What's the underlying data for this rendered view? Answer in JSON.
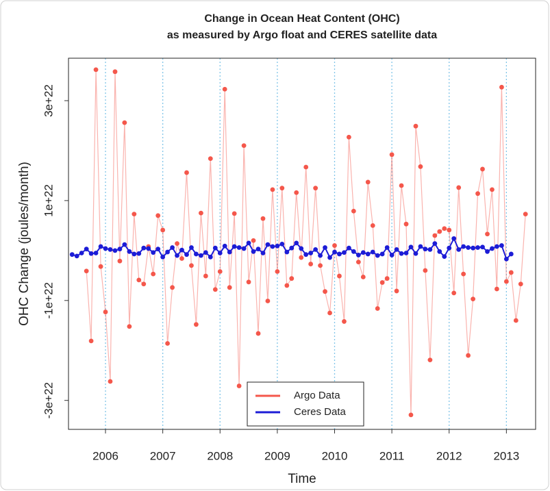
{
  "chart_data": {
    "type": "line",
    "title": "Change in Ocean Heat Content (OHC)",
    "subtitle": "as measured by Argo float and CERES satellite data",
    "x_label": "Time",
    "y_label": "OHC Change (joules/month)",
    "xlim": [
      2005.354,
      2013.51
    ],
    "ylim": [
      -3.58e+22,
      3.85e+22
    ],
    "xticks": [
      2006,
      2007,
      2008,
      2009,
      2010,
      2011,
      2012,
      2013
    ],
    "yticks": [
      {
        "value": -3e+22,
        "label": "-3e+22"
      },
      {
        "value": -1e+22,
        "label": "-1e+22"
      },
      {
        "value": 1e+22,
        "label": "1e+22"
      },
      {
        "value": 3e+22,
        "label": "3e+22"
      }
    ],
    "grid": true,
    "legend": "bottom",
    "x": [
      2005.417,
      2005.5,
      2005.583,
      2005.667,
      2005.75,
      2005.833,
      2005.917,
      2006,
      2006.083,
      2006.167,
      2006.25,
      2006.333,
      2006.417,
      2006.5,
      2006.583,
      2006.667,
      2006.75,
      2006.833,
      2006.917,
      2007,
      2007.083,
      2007.167,
      2007.25,
      2007.333,
      2007.417,
      2007.5,
      2007.583,
      2007.667,
      2007.75,
      2007.833,
      2007.917,
      2008,
      2008.083,
      2008.167,
      2008.25,
      2008.333,
      2008.417,
      2008.5,
      2008.583,
      2008.667,
      2008.75,
      2008.833,
      2008.917,
      2009,
      2009.083,
      2009.167,
      2009.25,
      2009.333,
      2009.417,
      2009.5,
      2009.583,
      2009.667,
      2009.75,
      2009.833,
      2009.917,
      2010,
      2010.083,
      2010.167,
      2010.25,
      2010.333,
      2010.417,
      2010.5,
      2010.583,
      2010.667,
      2010.75,
      2010.833,
      2010.917,
      2011,
      2011.083,
      2011.167,
      2011.25,
      2011.333,
      2011.417,
      2011.5,
      2011.583,
      2011.667,
      2011.75,
      2011.833,
      2011.917,
      2012,
      2012.083,
      2012.167,
      2012.25,
      2012.333,
      2012.417,
      2012.5,
      2012.583,
      2012.667,
      2012.75,
      2012.833,
      2012.917,
      2013,
      2013.083,
      2013.167,
      2013.25,
      2013.333
    ],
    "series": [
      {
        "name": "Argo Data",
        "color": "#f4574b",
        "values": [
          null,
          null,
          null,
          -4.1e+21,
          -1.81e+22,
          3.62e+22,
          -3.2e+21,
          -1.23e+22,
          -2.62e+22,
          3.58e+22,
          -2.1e+21,
          2.56e+22,
          -1.52e+22,
          7.3e+21,
          -5.9e+21,
          -6.7e+21,
          8e+20,
          -4.7e+21,
          7e+21,
          4.1e+21,
          -1.86e+22,
          -7.4e+21,
          1.4e+21,
          -1.6e+21,
          1.56e+22,
          -3e+21,
          -1.48e+22,
          7.5e+21,
          -5.1e+21,
          1.84e+22,
          -7.8e+21,
          -4.2e+21,
          3.23e+22,
          -7.4e+21,
          7.4e+21,
          -2.71e+22,
          2.1e+22,
          -6.3e+21,
          2e+21,
          -1.66e+22,
          6.4e+21,
          -1.01e+22,
          1.22e+22,
          -4.2e+21,
          1.25e+22,
          -7e+21,
          -5.6e+21,
          1.16e+22,
          -1.4e+21,
          1.67e+22,
          -2.7e+21,
          1.25e+22,
          -3e+21,
          -8.2e+21,
          -1.25e+22,
          1e+21,
          -5.1e+21,
          -1.42e+22,
          2.27e+22,
          7.9e+21,
          -2.3e+21,
          -5.3e+21,
          1.37e+22,
          5e+21,
          -1.16e+22,
          -6.4e+21,
          -5.6e+21,
          1.92e+22,
          -8.1e+21,
          1.3e+22,
          5.3e+21,
          -3.29e+22,
          2.49e+22,
          1.68e+22,
          -4e+21,
          -2.19e+22,
          3e+21,
          3.8e+21,
          4.4e+21,
          4.1e+21,
          -8.5e+21,
          1.26e+22,
          -4.7e+21,
          -2.1e+22,
          -9.7e+21,
          1.14e+22,
          1.63e+22,
          3.3e+21,
          1.22e+22,
          -7.7e+21,
          3.27e+22,
          -6.2e+21,
          -4.4e+21,
          -1.4e+22,
          -6.7e+21,
          7.3e+21
        ]
      },
      {
        "name": "Ceres Data",
        "color": "#1c1cd6",
        "values": [
          -8e+20,
          -1.1e+21,
          -5e+20,
          3e+20,
          -6e+20,
          -5e+20,
          8e+20,
          4e+20,
          2e+20,
          0,
          3e+20,
          1.2e+21,
          -2e+20,
          -7e+20,
          -6e+20,
          5e+20,
          4e+20,
          -4e+20,
          3e+20,
          -1.3e+21,
          -3e+20,
          6e+20,
          -1e+21,
          1e+20,
          -8e+20,
          6e+20,
          -7e+20,
          -1e+21,
          -4e+20,
          -1.3e+21,
          5e+20,
          -5e+20,
          9e+20,
          -3e+20,
          8e+20,
          6e+20,
          4e+20,
          1.5e+21,
          -2e+20,
          3e+20,
          -5e+20,
          1.2e+21,
          8e+20,
          9e+20,
          1.3e+21,
          -3e+20,
          5e+20,
          1.5e+21,
          4e+20,
          -8e+20,
          -5e+20,
          2e+20,
          -1e+21,
          6e+20,
          -1.4e+21,
          -3e+20,
          -7e+20,
          -4e+20,
          5e+20,
          -2e+20,
          -9e+20,
          -4e+20,
          -7e+20,
          -3e+20,
          -1e+21,
          -7e+20,
          6e+20,
          -9e+20,
          2e+20,
          -6e+20,
          -5e+20,
          7e+20,
          -6e+20,
          8e+20,
          3e+20,
          2e+20,
          1.4e+21,
          -2e+20,
          -1.2e+21,
          5e+20,
          2.4e+21,
          2e+20,
          8e+20,
          6e+20,
          5e+20,
          6e+20,
          7e+20,
          -2e+20,
          4e+20,
          8e+20,
          1e+21,
          -1.7e+21,
          -7e+20,
          null,
          null,
          null
        ]
      }
    ]
  }
}
